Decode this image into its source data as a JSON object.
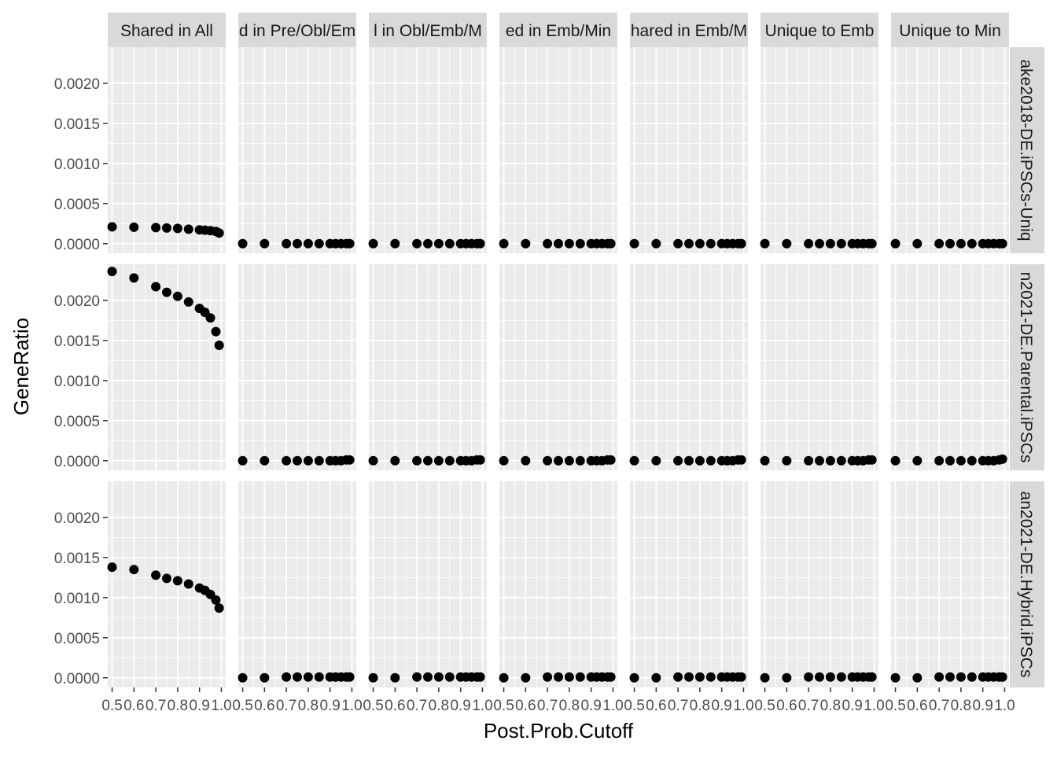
{
  "chart_data": {
    "type": "scatter",
    "facet_layout": "grid",
    "xlabel": "Post.Prob.Cutoff",
    "ylabel": "GeneRatio",
    "x_tick_labels": [
      "0.5",
      "0.6",
      "0.7",
      "0.8",
      "0.9",
      "1.0"
    ],
    "x_ticks": [
      0.5,
      0.6,
      0.7,
      0.8,
      0.9,
      1.0
    ],
    "xlim": [
      0.48,
      1.02
    ],
    "y_tick_labels": [
      "0.0000",
      "0.0005",
      "0.0010",
      "0.0015",
      "0.0020"
    ],
    "y_ticks": [
      0,
      0.0005,
      0.001,
      0.0015,
      0.002
    ],
    "ylim": [
      -0.00012,
      0.00245
    ],
    "grid": true,
    "legend": "none",
    "point_color": "#000000",
    "panel_background": "#ebebeb",
    "strip_background": "#d9d9d9",
    "column_strips": [
      "Shared in All",
      "d in Pre/Obl/Em",
      "l in Obl/Emb/M",
      "ed in Emb/Min",
      "hared in Emb/M",
      "Unique to Emb",
      "Unique to Min"
    ],
    "row_strips": [
      "ake2018-DE.iPSCs-Uniq",
      "n2021-DE.Parental.iPSCs",
      "an2021-DE.Hybrid.iPSCs"
    ],
    "x": [
      0.5,
      0.6,
      0.7,
      0.75,
      0.8,
      0.85,
      0.9,
      0.925,
      0.95,
      0.975,
      0.99
    ],
    "panels": [
      {
        "row": 0,
        "col": 0,
        "y": [
          0.00021,
          0.000205,
          0.0002,
          0.000195,
          0.00019,
          0.00018,
          0.000172,
          0.000168,
          0.000162,
          0.000152,
          0.000132
        ]
      },
      {
        "row": 0,
        "col": 1,
        "y": [
          0,
          0,
          0,
          0,
          0,
          0,
          0,
          0,
          0,
          0,
          0
        ]
      },
      {
        "row": 0,
        "col": 2,
        "y": [
          0,
          0,
          0,
          0,
          0,
          0,
          0,
          0,
          0,
          0,
          0
        ]
      },
      {
        "row": 0,
        "col": 3,
        "y": [
          0,
          0,
          0,
          0,
          0,
          0,
          0,
          0,
          0,
          0,
          0
        ]
      },
      {
        "row": 0,
        "col": 4,
        "y": [
          0,
          0,
          0,
          0,
          0,
          0,
          0,
          0,
          0,
          0,
          0
        ]
      },
      {
        "row": 0,
        "col": 5,
        "y": [
          0,
          0,
          0,
          0,
          0,
          0,
          0,
          0,
          0,
          0,
          0
        ]
      },
      {
        "row": 0,
        "col": 6,
        "y": [
          0,
          0,
          0,
          0,
          0,
          0,
          0,
          0,
          0,
          0,
          0
        ]
      },
      {
        "row": 1,
        "col": 0,
        "y": [
          0.00236,
          0.00228,
          0.00217,
          0.0021,
          0.00205,
          0.00198,
          0.0019,
          0.00185,
          0.00178,
          0.00161,
          0.00144
        ]
      },
      {
        "row": 1,
        "col": 1,
        "y": [
          0,
          0,
          0,
          0,
          0,
          0,
          0,
          0,
          0,
          1e-05,
          1e-05
        ]
      },
      {
        "row": 1,
        "col": 2,
        "y": [
          0,
          0,
          0,
          0,
          0,
          0,
          0,
          0,
          0,
          1e-05,
          1e-05
        ]
      },
      {
        "row": 1,
        "col": 3,
        "y": [
          0,
          0,
          0,
          0,
          0,
          0,
          0,
          0,
          0,
          1e-05,
          1e-05
        ]
      },
      {
        "row": 1,
        "col": 4,
        "y": [
          0,
          0,
          0,
          0,
          0,
          0,
          0,
          0,
          0,
          1e-05,
          1e-05
        ]
      },
      {
        "row": 1,
        "col": 5,
        "y": [
          0,
          0,
          0,
          0,
          0,
          0,
          0,
          0,
          0,
          1e-05,
          1e-05
        ]
      },
      {
        "row": 1,
        "col": 6,
        "y": [
          0,
          0,
          0,
          0,
          0,
          0,
          0,
          0,
          0,
          1e-05,
          2e-05
        ]
      },
      {
        "row": 2,
        "col": 0,
        "y": [
          0.00138,
          0.00135,
          0.00128,
          0.00124,
          0.00121,
          0.00117,
          0.00112,
          0.00109,
          0.00104,
          0.00097,
          0.00087
        ]
      },
      {
        "row": 2,
        "col": 1,
        "y": [
          0,
          0,
          1e-05,
          1e-05,
          1e-05,
          1e-05,
          1e-05,
          1e-05,
          1e-05,
          1e-05,
          1e-05
        ]
      },
      {
        "row": 2,
        "col": 2,
        "y": [
          0,
          0,
          1e-05,
          1e-05,
          1e-05,
          1e-05,
          1e-05,
          1e-05,
          1e-05,
          1e-05,
          1e-05
        ]
      },
      {
        "row": 2,
        "col": 3,
        "y": [
          0,
          0,
          1e-05,
          1e-05,
          1e-05,
          1e-05,
          1e-05,
          1e-05,
          1e-05,
          1e-05,
          1e-05
        ]
      },
      {
        "row": 2,
        "col": 4,
        "y": [
          0,
          0,
          1e-05,
          1e-05,
          1e-05,
          1e-05,
          1e-05,
          1e-05,
          1e-05,
          1e-05,
          1e-05
        ]
      },
      {
        "row": 2,
        "col": 5,
        "y": [
          0,
          0,
          1e-05,
          1e-05,
          1e-05,
          1e-05,
          1e-05,
          1e-05,
          1e-05,
          1e-05,
          1e-05
        ]
      },
      {
        "row": 2,
        "col": 6,
        "y": [
          0,
          0,
          1e-05,
          1e-05,
          1e-05,
          1e-05,
          1e-05,
          1e-05,
          1e-05,
          1e-05,
          1e-05
        ]
      }
    ]
  }
}
